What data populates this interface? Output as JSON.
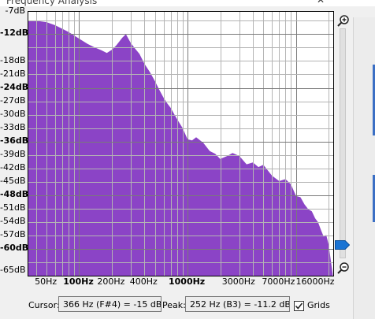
{
  "window": {
    "title": "Frequency Analysis"
  },
  "icons": {
    "zoom_in": "zoom-in-icon",
    "zoom_out": "zoom-out-icon",
    "close": "close-icon"
  },
  "colors": {
    "spectrum": "#8b44c6",
    "grid_major": "#7a7a7a",
    "grid_minor": "#b4b4b4"
  },
  "y_axis": {
    "labels": [
      "-7dB",
      "-12dB",
      "-18dB",
      "-21dB",
      "-24dB",
      "-27dB",
      "-30dB",
      "-33dB",
      "-36dB",
      "-39dB",
      "-42dB",
      "-45dB",
      "-48dB",
      "-51dB",
      "-54dB",
      "-57dB",
      "-60dB",
      "-65dB"
    ],
    "bold": [
      "-12dB",
      "-24dB",
      "-36dB",
      "-48dB",
      "-60dB"
    ]
  },
  "x_axis": {
    "labels": [
      "50Hz",
      "100Hz",
      "200Hz",
      "400Hz",
      "1000Hz",
      "3000Hz",
      "7000Hz",
      "16000Hz"
    ],
    "bold": [
      "100Hz",
      "1000Hz"
    ]
  },
  "chart_data": {
    "type": "area",
    "x_scale": "log",
    "x_range_hz": [
      34,
      22050
    ],
    "y_range_db": [
      -66,
      -7
    ],
    "grid": true,
    "series": [
      {
        "x": [
          34,
          40,
          50,
          60,
          70,
          80,
          100,
          120,
          140,
          160,
          180,
          200,
          220,
          250,
          270,
          300,
          330,
          360,
          400,
          450,
          500,
          550,
          600,
          650,
          700,
          750,
          800,
          900,
          1000,
          1100,
          1200,
          1400,
          1600,
          1800,
          2000,
          2300,
          2600,
          3000,
          3500,
          4000,
          4500,
          5000,
          6000,
          7000,
          8000,
          9000,
          10000,
          11000,
          12000,
          13000,
          14000,
          15000,
          16000,
          17000,
          18000,
          19000,
          20000,
          21000,
          22050
        ],
        "y": [
          -9,
          -9,
          -9.3,
          -10,
          -10.8,
          -11.5,
          -13,
          -14.2,
          -15,
          -15.6,
          -16.2,
          -15.5,
          -14.5,
          -12.8,
          -12,
          -14,
          -15.3,
          -16.4,
          -18.6,
          -20.5,
          -22.5,
          -24.5,
          -26.2,
          -27.5,
          -28.5,
          -29.8,
          -31,
          -33,
          -34.5,
          -35.5,
          -36.5,
          -37,
          -37.5,
          -38.5,
          -39,
          -39.5,
          -40,
          -40.5,
          -41,
          -41.5,
          -42,
          -42.5,
          -43.5,
          -44,
          -45,
          -46.5,
          -47.5,
          -48.5,
          -49,
          -50,
          -51,
          -52,
          -55,
          -56,
          -57,
          -58,
          -59,
          -62,
          -66
        ]
      }
    ]
  },
  "footer": {
    "cursor_label": "Cursor:",
    "cursor_value": "366 Hz (F#4) = -15 dB",
    "peak_label": "Peak:",
    "peak_value": "252 Hz (B3) = -11.2 dB",
    "grids_label": "Grids",
    "grids_checked": true
  }
}
